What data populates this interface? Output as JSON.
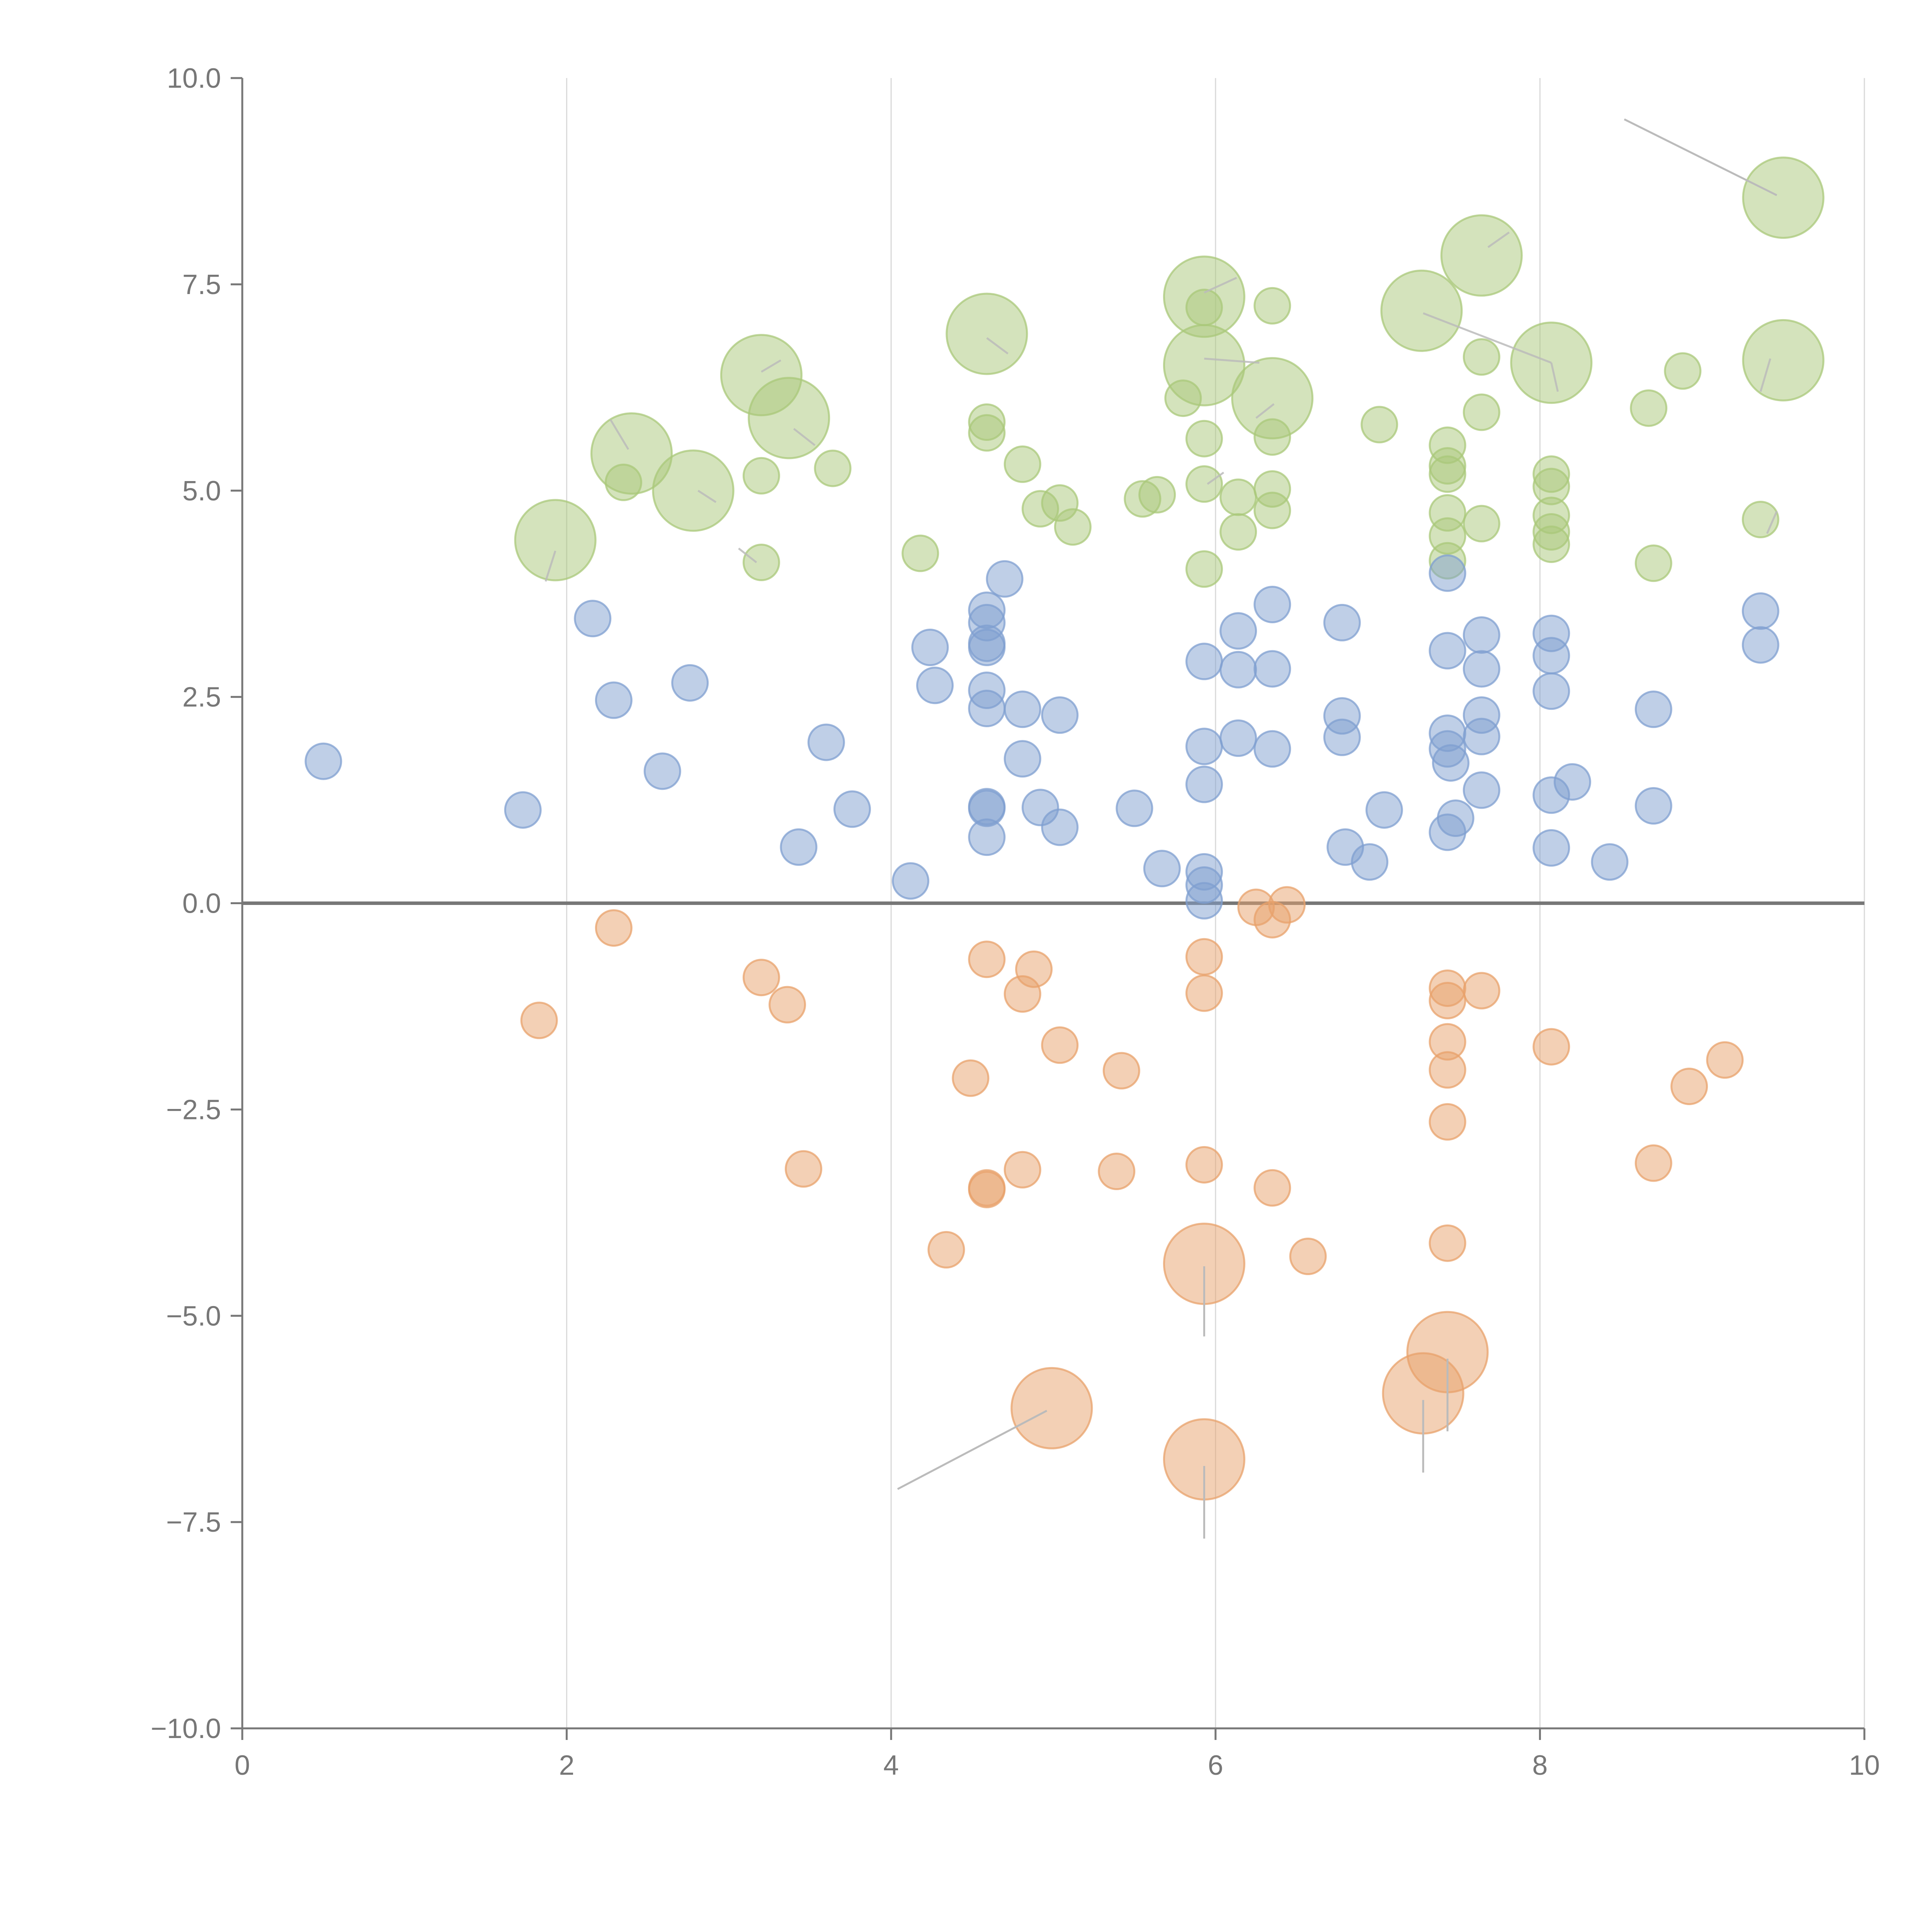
{
  "chart_data": {
    "type": "scatter",
    "title": "",
    "xlabel": "",
    "ylabel": "",
    "xlim": [
      0,
      10
    ],
    "ylim": [
      -10,
      10
    ],
    "grid": "vertical",
    "x_ticks": [
      0,
      2,
      4,
      6,
      8,
      10
    ],
    "x_tick_labels": [
      "0",
      "2",
      "4",
      "6",
      "8",
      "10"
    ],
    "y_ticks": [
      10,
      7.5,
      5,
      2.5,
      0,
      -2.5,
      -5,
      -7.5,
      -10
    ],
    "y_tick_labels": [
      "10.0",
      "7.5",
      "5.0",
      "2.5",
      "0.0",
      "−2.5",
      "−5.0",
      "−7.5",
      "−10.0"
    ],
    "colors": {
      "positive_low": "#7f9fd0",
      "positive_high": "#a9c87a",
      "negative": "#e8a16b"
    },
    "series": [
      {
        "name": "green",
        "color": "#a9c87a",
        "points": [
          [
            1.93,
            4.4,
            "L"
          ],
          [
            2.4,
            5.45,
            "L"
          ],
          [
            2.78,
            5.0,
            "L"
          ],
          [
            3.2,
            6.4,
            "L"
          ],
          [
            3.37,
            5.88,
            "L"
          ],
          [
            4.59,
            6.9,
            "L"
          ],
          [
            5.93,
            7.35,
            "L"
          ],
          [
            5.93,
            6.52,
            "L"
          ],
          [
            6.35,
            6.12,
            "L"
          ],
          [
            7.27,
            7.18,
            "L"
          ],
          [
            7.64,
            7.85,
            "L"
          ],
          [
            8.07,
            6.55,
            "L"
          ],
          [
            9.5,
            8.55,
            "L"
          ],
          [
            9.5,
            6.58,
            "L"
          ],
          [
            2.35,
            5.1,
            "S"
          ],
          [
            3.2,
            5.18,
            "S"
          ],
          [
            3.2,
            4.13,
            "S"
          ],
          [
            3.64,
            5.27,
            "S"
          ],
          [
            4.18,
            4.24,
            "S"
          ],
          [
            4.59,
            5.83,
            "S"
          ],
          [
            4.59,
            5.7,
            "S"
          ],
          [
            4.81,
            5.32,
            "S"
          ],
          [
            4.92,
            4.78,
            "S"
          ],
          [
            5.04,
            4.85,
            "S"
          ],
          [
            5.12,
            4.56,
            "S"
          ],
          [
            5.55,
            4.9,
            "S"
          ],
          [
            5.64,
            4.95,
            "S"
          ],
          [
            5.8,
            6.12,
            "S"
          ],
          [
            5.93,
            7.22,
            "S"
          ],
          [
            5.93,
            5.63,
            "S"
          ],
          [
            5.93,
            5.08,
            "S"
          ],
          [
            5.93,
            4.05,
            "S"
          ],
          [
            6.14,
            4.92,
            "S"
          ],
          [
            6.14,
            4.5,
            "S"
          ],
          [
            6.35,
            7.24,
            "S"
          ],
          [
            6.35,
            5.65,
            "S"
          ],
          [
            6.35,
            5.02,
            "S"
          ],
          [
            6.35,
            4.76,
            "S"
          ],
          [
            7.01,
            5.8,
            "S"
          ],
          [
            7.43,
            5.55,
            "S"
          ],
          [
            7.43,
            5.3,
            "S"
          ],
          [
            7.43,
            5.2,
            "S"
          ],
          [
            7.43,
            4.73,
            "S"
          ],
          [
            7.43,
            4.45,
            "S"
          ],
          [
            7.43,
            4.15,
            "S"
          ],
          [
            7.64,
            6.62,
            "S"
          ],
          [
            7.64,
            5.95,
            "S"
          ],
          [
            7.64,
            4.6,
            "S"
          ],
          [
            8.07,
            5.2,
            "S"
          ],
          [
            8.07,
            5.05,
            "S"
          ],
          [
            8.07,
            4.7,
            "S"
          ],
          [
            8.07,
            4.5,
            "S"
          ],
          [
            8.07,
            4.35,
            "S"
          ],
          [
            8.67,
            6.0,
            "S"
          ],
          [
            8.88,
            6.45,
            "S"
          ],
          [
            8.7,
            4.12,
            "S"
          ],
          [
            9.36,
            4.65,
            "S"
          ]
        ]
      },
      {
        "name": "blue",
        "color": "#7f9fd0",
        "points": [
          [
            0.5,
            1.72,
            "S"
          ],
          [
            1.73,
            1.13,
            "S"
          ],
          [
            2.16,
            3.45,
            "S"
          ],
          [
            2.29,
            2.46,
            "S"
          ],
          [
            2.59,
            1.6,
            "S"
          ],
          [
            2.76,
            2.67,
            "S"
          ],
          [
            3.43,
            0.68,
            "S"
          ],
          [
            3.6,
            1.95,
            "S"
          ],
          [
            3.76,
            1.14,
            "S"
          ],
          [
            4.12,
            0.27,
            "S"
          ],
          [
            4.24,
            3.1,
            "S"
          ],
          [
            4.27,
            2.64,
            "S"
          ],
          [
            4.59,
            3.55,
            "S"
          ],
          [
            4.59,
            3.4,
            "S"
          ],
          [
            4.59,
            3.15,
            "S"
          ],
          [
            4.59,
            3.1,
            "S"
          ],
          [
            4.59,
            2.58,
            "S"
          ],
          [
            4.59,
            2.36,
            "S"
          ],
          [
            4.59,
            1.17,
            "S"
          ],
          [
            4.59,
            1.15,
            "S"
          ],
          [
            4.59,
            0.8,
            "S"
          ],
          [
            4.7,
            3.93,
            "S"
          ],
          [
            4.81,
            2.35,
            "S"
          ],
          [
            4.81,
            1.75,
            "S"
          ],
          [
            4.92,
            1.16,
            "S"
          ],
          [
            5.04,
            2.28,
            "S"
          ],
          [
            5.04,
            0.92,
            "S"
          ],
          [
            5.5,
            1.15,
            "S"
          ],
          [
            5.67,
            0.42,
            "S"
          ],
          [
            5.93,
            2.93,
            "S"
          ],
          [
            5.93,
            1.9,
            "S"
          ],
          [
            5.93,
            1.44,
            "S"
          ],
          [
            5.93,
            0.38,
            "S"
          ],
          [
            5.93,
            0.22,
            "S"
          ],
          [
            5.93,
            0.03,
            "S"
          ],
          [
            6.14,
            3.3,
            "S"
          ],
          [
            6.14,
            2.83,
            "S"
          ],
          [
            6.14,
            2.0,
            "S"
          ],
          [
            6.35,
            3.62,
            "S"
          ],
          [
            6.35,
            2.84,
            "S"
          ],
          [
            6.35,
            1.87,
            "S"
          ],
          [
            6.78,
            3.4,
            "S"
          ],
          [
            6.78,
            2.27,
            "S"
          ],
          [
            6.78,
            2.01,
            "S"
          ],
          [
            6.8,
            0.68,
            "S"
          ],
          [
            6.95,
            0.5,
            "S"
          ],
          [
            7.04,
            1.13,
            "S"
          ],
          [
            7.43,
            4.0,
            "S"
          ],
          [
            7.43,
            3.06,
            "S"
          ],
          [
            7.43,
            2.06,
            "S"
          ],
          [
            7.43,
            1.87,
            "S"
          ],
          [
            7.45,
            1.7,
            "S"
          ],
          [
            7.48,
            1.03,
            "S"
          ],
          [
            7.43,
            0.86,
            "S"
          ],
          [
            7.64,
            3.25,
            "S"
          ],
          [
            7.64,
            2.84,
            "S"
          ],
          [
            7.64,
            2.28,
            "S"
          ],
          [
            7.64,
            2.02,
            "S"
          ],
          [
            7.64,
            1.37,
            "S"
          ],
          [
            8.07,
            3.27,
            "S"
          ],
          [
            8.07,
            3.0,
            "S"
          ],
          [
            8.07,
            2.57,
            "S"
          ],
          [
            8.07,
            1.31,
            "S"
          ],
          [
            8.2,
            1.47,
            "S"
          ],
          [
            8.07,
            0.67,
            "S"
          ],
          [
            8.43,
            0.5,
            "S"
          ],
          [
            8.7,
            2.35,
            "S"
          ],
          [
            8.7,
            1.18,
            "S"
          ],
          [
            9.36,
            3.54,
            "S"
          ],
          [
            9.36,
            3.13,
            "S"
          ]
        ]
      },
      {
        "name": "orange",
        "color": "#e8a16b",
        "points": [
          [
            4.99,
            -6.12,
            "L"
          ],
          [
            5.93,
            -4.37,
            "L"
          ],
          [
            5.93,
            -6.74,
            "L"
          ],
          [
            7.28,
            -5.94,
            "L"
          ],
          [
            7.43,
            -5.44,
            "L"
          ],
          [
            1.83,
            -1.42,
            "S"
          ],
          [
            2.29,
            -0.3,
            "S"
          ],
          [
            3.2,
            -0.9,
            "S"
          ],
          [
            3.36,
            -1.23,
            "S"
          ],
          [
            3.46,
            -3.22,
            "S"
          ],
          [
            4.34,
            -4.2,
            "S"
          ],
          [
            4.49,
            -2.12,
            "S"
          ],
          [
            4.59,
            -0.68,
            "S"
          ],
          [
            4.59,
            -3.45,
            "S"
          ],
          [
            4.59,
            -3.47,
            "S"
          ],
          [
            4.81,
            -1.1,
            "S"
          ],
          [
            4.81,
            -3.23,
            "S"
          ],
          [
            4.88,
            -0.8,
            "S"
          ],
          [
            5.04,
            -1.72,
            "S"
          ],
          [
            5.39,
            -3.25,
            "S"
          ],
          [
            5.42,
            -2.03,
            "S"
          ],
          [
            5.93,
            -0.65,
            "S"
          ],
          [
            5.93,
            -1.09,
            "S"
          ],
          [
            5.93,
            -3.17,
            "S"
          ],
          [
            6.25,
            -0.05,
            "S"
          ],
          [
            6.35,
            -0.2,
            "S"
          ],
          [
            6.44,
            -0.02,
            "S"
          ],
          [
            6.35,
            -3.45,
            "S"
          ],
          [
            6.57,
            -4.28,
            "S"
          ],
          [
            7.43,
            -1.03,
            "S"
          ],
          [
            7.43,
            -1.18,
            "S"
          ],
          [
            7.43,
            -1.68,
            "S"
          ],
          [
            7.43,
            -2.02,
            "S"
          ],
          [
            7.43,
            -2.65,
            "S"
          ],
          [
            7.43,
            -4.12,
            "S"
          ],
          [
            7.64,
            -1.06,
            "S"
          ],
          [
            8.07,
            -1.74,
            "S"
          ],
          [
            8.7,
            -3.15,
            "S"
          ],
          [
            8.92,
            -2.22,
            "S"
          ],
          [
            9.14,
            -1.9,
            "S"
          ]
        ]
      }
    ],
    "leaders": [
      [
        8.52,
        9.5,
        9.46,
        8.58
      ],
      [
        4.04,
        -7.1,
        4.96,
        -6.15
      ],
      [
        5.93,
        -4.4,
        5.93,
        -5.25
      ],
      [
        5.93,
        -6.82,
        5.93,
        -7.7
      ],
      [
        7.28,
        -6.02,
        7.28,
        -6.9
      ],
      [
        7.43,
        -5.52,
        7.43,
        -6.4
      ],
      [
        2.27,
        5.86,
        2.38,
        5.5
      ],
      [
        1.87,
        3.9,
        1.93,
        4.27
      ],
      [
        3.2,
        6.44,
        3.32,
        6.58
      ],
      [
        3.4,
        5.75,
        3.53,
        5.55
      ],
      [
        4.59,
        6.85,
        4.72,
        6.66
      ],
      [
        5.93,
        7.4,
        6.13,
        7.58
      ],
      [
        5.93,
        6.6,
        6.27,
        6.55
      ],
      [
        6.25,
        5.88,
        6.36,
        6.05
      ],
      [
        7.28,
        7.15,
        8.07,
        6.55
      ],
      [
        7.68,
        7.95,
        7.81,
        8.13
      ],
      [
        8.07,
        6.55,
        8.11,
        6.2
      ],
      [
        9.42,
        6.6,
        9.36,
        6.2
      ],
      [
        2.81,
        5.0,
        2.92,
        4.86
      ],
      [
        3.06,
        4.3,
        3.17,
        4.13
      ],
      [
        5.95,
        5.08,
        6.05,
        5.22
      ],
      [
        9.4,
        4.48,
        9.46,
        4.75
      ]
    ]
  }
}
